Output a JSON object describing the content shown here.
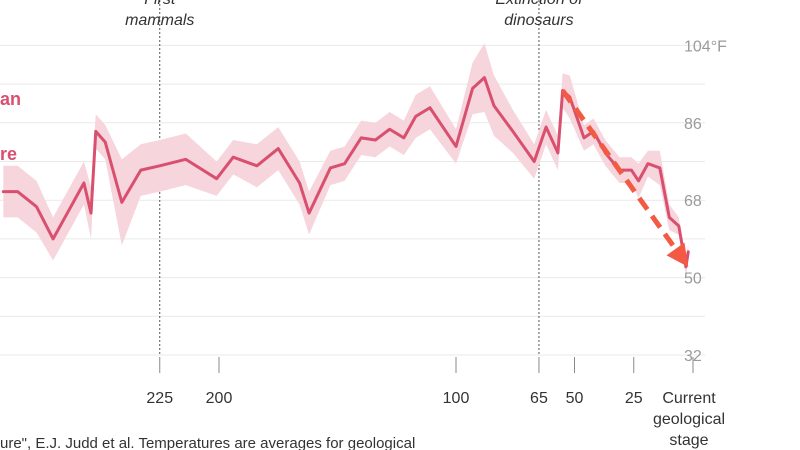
{
  "chart_data": {
    "type": "line",
    "ylim": [
      32,
      104
    ],
    "y_unit": "°F",
    "y_ticks": [
      "104°F",
      "86",
      "68",
      "50",
      "32"
    ],
    "x_ticks": [
      {
        "x": 225,
        "label": "225"
      },
      {
        "x": 200,
        "label": "200"
      },
      {
        "x": 100,
        "label": "100"
      },
      {
        "x": 65,
        "label": "65"
      },
      {
        "x": 50,
        "label": "50"
      },
      {
        "x": 25,
        "label": "25"
      },
      {
        "x": 0,
        "label": [
          "Current",
          "geological",
          "stage"
        ]
      }
    ],
    "x_axis_reversed": true,
    "annotations": [
      {
        "x": 225,
        "lines": [
          "First",
          "mammals"
        ]
      },
      {
        "x": 65,
        "lines": [
          "Extinction of",
          "dinosaurs"
        ]
      }
    ],
    "legend_fragments": [
      "an",
      "re"
    ],
    "series": [
      {
        "color": "#d9506f",
        "band_color": "#f6d5dc",
        "points": [
          [
            291,
            70
          ],
          [
            285,
            70
          ],
          [
            277,
            66.5
          ],
          [
            270,
            59
          ],
          [
            263,
            66
          ],
          [
            257,
            72
          ],
          [
            254,
            65
          ],
          [
            252,
            84
          ],
          [
            248,
            81.5
          ],
          [
            241,
            67.5
          ],
          [
            233,
            75
          ],
          [
            225,
            76
          ],
          [
            214,
            77.5
          ],
          [
            201,
            73
          ],
          [
            194,
            78
          ],
          [
            184,
            76
          ],
          [
            175,
            80
          ],
          [
            166,
            72
          ],
          [
            162,
            65
          ],
          [
            153,
            75.5
          ],
          [
            147,
            76.5
          ],
          [
            140,
            82.5
          ],
          [
            134,
            82
          ],
          [
            128,
            84.5
          ],
          [
            122,
            82.5
          ],
          [
            117,
            87.5
          ],
          [
            111,
            89.5
          ],
          [
            100,
            80.5
          ],
          [
            93,
            94
          ],
          [
            88,
            96.5
          ],
          [
            84,
            90
          ],
          [
            76,
            84
          ],
          [
            67,
            77
          ],
          [
            62,
            85
          ],
          [
            57,
            79
          ],
          [
            55,
            93.5
          ],
          [
            52,
            92
          ],
          [
            46,
            82.5
          ],
          [
            42,
            84
          ],
          [
            37,
            79
          ],
          [
            31,
            75
          ],
          [
            26,
            75
          ],
          [
            23,
            72.5
          ],
          [
            19,
            76.5
          ],
          [
            14,
            75.5
          ],
          [
            10,
            64
          ],
          [
            6,
            62
          ],
          [
            3,
            52.5
          ],
          [
            2,
            56
          ]
        ],
        "band_halfwidth": [
          6,
          6,
          6,
          5,
          5,
          5,
          6,
          4,
          4,
          10,
          6,
          6,
          6,
          4,
          4,
          5,
          5,
          5,
          5,
          4,
          4,
          4,
          4,
          4,
          4,
          5,
          5,
          4,
          6,
          8,
          7,
          5,
          4,
          4,
          4,
          4,
          5,
          3,
          3,
          3,
          3,
          3,
          4,
          3,
          4,
          3,
          2,
          2,
          2
        ]
      }
    ],
    "trend_arrow": {
      "from": [
        55,
        93.5
      ],
      "to": [
        2,
        52.5
      ],
      "color": "#f25a43"
    }
  },
  "source_text": "ure\", E.J. Judd et al. Temperatures are averages for geological"
}
